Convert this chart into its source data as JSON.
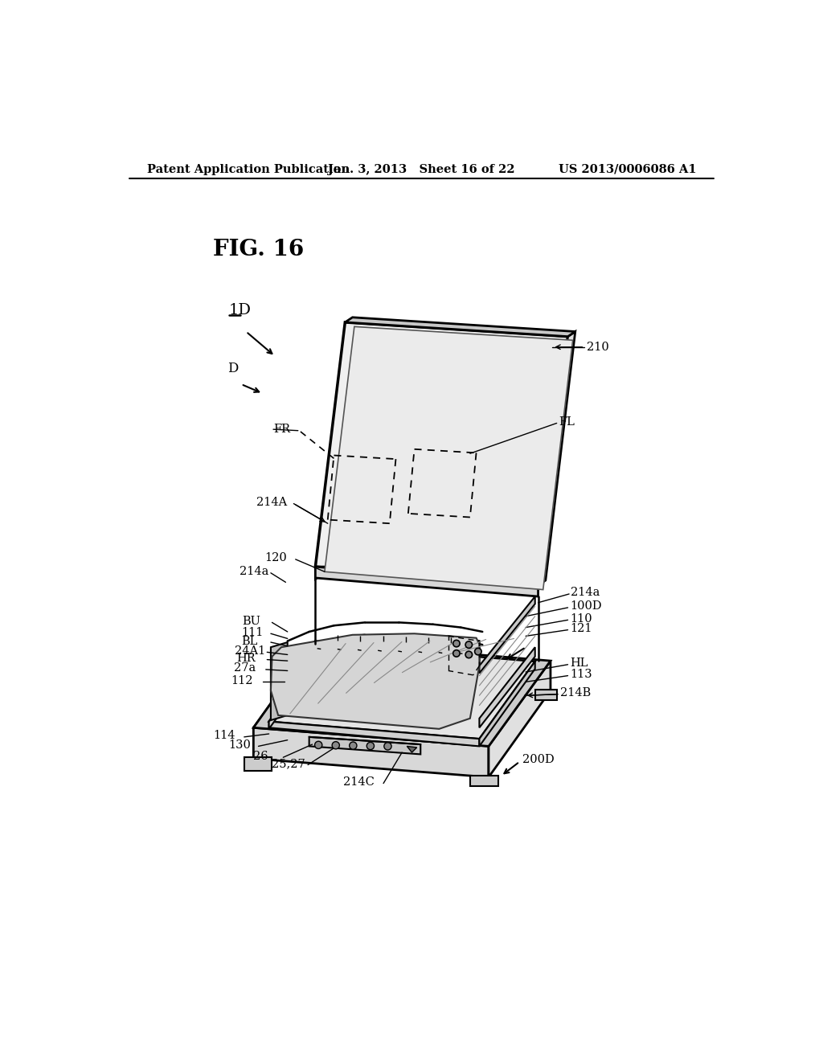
{
  "header_left": "Patent Application Publication",
  "header_center": "Jan. 3, 2013   Sheet 16 of 22",
  "header_right": "US 2013/0006086 A1",
  "figure_title": "FIG. 16",
  "bg": "#ffffff",
  "lc": "#000000"
}
